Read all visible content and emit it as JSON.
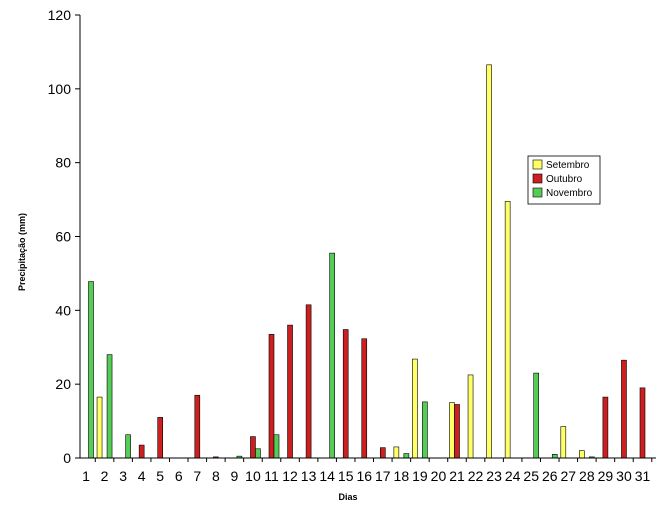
{
  "chart_data": {
    "type": "bar",
    "xlabel": "Dias",
    "ylabel": "Precipitação (mm)",
    "ylim": [
      0,
      120
    ],
    "yticks": [
      0,
      20,
      40,
      60,
      80,
      100,
      120
    ],
    "categories": [
      "1",
      "2",
      "3",
      "4",
      "5",
      "6",
      "7",
      "8",
      "9",
      "10",
      "11",
      "12",
      "13",
      "14",
      "15",
      "16",
      "17",
      "18",
      "19",
      "20",
      "21",
      "22",
      "23",
      "24",
      "25",
      "26",
      "27",
      "28",
      "29",
      "30",
      "31"
    ],
    "series": [
      {
        "name": "Setembro",
        "color": "#ffff66",
        "values": [
          0,
          16.5,
          0,
          0,
          0,
          0,
          0,
          0,
          0,
          0,
          0,
          0,
          0,
          0,
          0,
          0,
          0,
          3,
          26.8,
          0,
          15,
          22.5,
          106.5,
          69.5,
          0,
          0,
          8.5,
          2,
          0,
          0,
          0
        ]
      },
      {
        "name": "Outubro",
        "color": "#cc1f1f",
        "values": [
          0,
          0,
          0,
          3.5,
          11,
          0,
          17,
          0.3,
          0,
          5.8,
          33.5,
          36,
          41.5,
          0,
          34.8,
          32.3,
          2.8,
          0,
          0,
          0,
          14.5,
          0,
          0,
          0,
          0,
          0,
          0,
          0,
          16.5,
          26.5,
          19
        ]
      },
      {
        "name": "Novembro",
        "color": "#55cc55",
        "values": [
          47.8,
          28,
          6.3,
          0,
          0,
          0,
          0,
          0,
          0.5,
          2.5,
          6.3,
          0,
          0,
          55.5,
          0,
          0,
          0,
          1.2,
          15.2,
          0,
          0,
          0,
          0,
          0,
          23,
          1,
          0,
          0.3,
          0,
          0,
          0
        ]
      }
    ]
  }
}
